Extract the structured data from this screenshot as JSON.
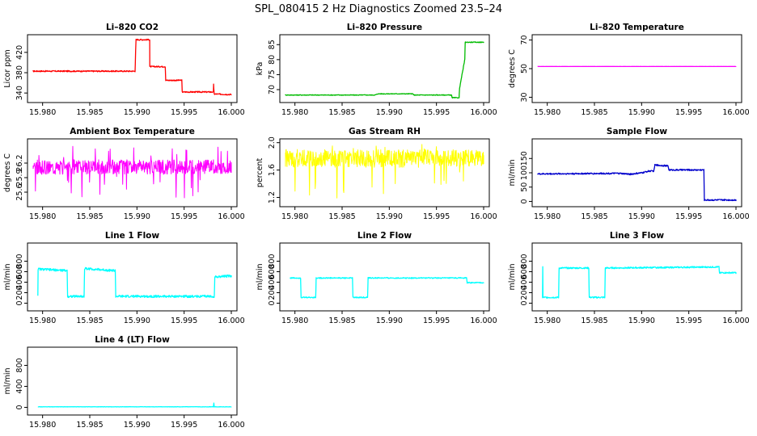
{
  "page_title": "SPL_080415  2 Hz Diagnostics Zoomed 23.5–24",
  "chart_data": [
    {
      "type": "line",
      "title": "Li–820 CO2",
      "ylabel": "Licor ppm",
      "color": "#ff0000",
      "xlim": [
        15.979,
        16.0
      ],
      "ylim": [
        326,
        450
      ],
      "xticks": [
        15.98,
        15.985,
        15.99,
        15.995,
        16.0
      ],
      "xtick_labels": [
        "15.980",
        "15.985",
        "15.990",
        "15.995",
        "16.000"
      ],
      "yticks": [
        340,
        380,
        420
      ],
      "ytick_labels": [
        "340",
        "380",
        "420"
      ],
      "noise": 1.2,
      "series": [
        {
          "x": [
            15.979,
            15.9898,
            15.9899,
            15.99135,
            15.99136,
            15.993,
            15.99305,
            15.99475,
            15.9948,
            15.9981,
            15.99812,
            15.99818,
            15.9982,
            16.0
          ],
          "y": [
            383,
            383,
            445,
            445,
            392,
            392,
            365,
            365,
            342,
            342,
            358,
            338,
            338,
            337
          ]
        }
      ]
    },
    {
      "type": "line",
      "title": "Li–820 Pressure",
      "ylabel": "kPa",
      "color": "#00bb00",
      "xlim": [
        15.979,
        16.0
      ],
      "ylim": [
        66.5,
        87.5
      ],
      "xticks": [
        15.98,
        15.985,
        15.99,
        15.995,
        16.0
      ],
      "xtick_labels": [
        "15.980",
        "15.985",
        "15.990",
        "15.995",
        "16.000"
      ],
      "yticks": [
        70,
        75,
        80,
        85
      ],
      "ytick_labels": [
        "70",
        "75",
        "80",
        "85"
      ],
      "noise": 0.12,
      "series": [
        {
          "x": [
            15.979,
            15.9885,
            15.9888,
            15.9925,
            15.9926,
            15.9966,
            15.99665,
            15.9974,
            15.99745,
            15.998,
            15.99805,
            16.0
          ],
          "y": [
            68.2,
            68.2,
            68.6,
            68.6,
            68.2,
            68.2,
            67.3,
            67.3,
            70.5,
            80.0,
            85.8,
            85.8
          ]
        }
      ]
    },
    {
      "type": "line",
      "title": "Li–820 Temperature",
      "ylabel": "degrees C",
      "color": "#ff00ff",
      "xlim": [
        15.979,
        16.0
      ],
      "ylim": [
        28,
        72
      ],
      "xticks": [
        15.98,
        15.985,
        15.99,
        15.995,
        16.0
      ],
      "xtick_labels": [
        "15.980",
        "15.985",
        "15.990",
        "15.995",
        "16.000"
      ],
      "yticks": [
        30,
        50,
        70
      ],
      "ytick_labels": [
        "30",
        "50",
        "70"
      ],
      "noise": 0.05,
      "series": [
        {
          "x": [
            15.979,
            16.0
          ],
          "y": [
            51.5,
            51.5
          ]
        }
      ]
    },
    {
      "type": "line",
      "title": "Ambient Box Temperature",
      "ylabel": "degrees C",
      "color": "#ff00ff",
      "xlim": [
        15.979,
        16.0
      ],
      "ylim": [
        25.35,
        26.65
      ],
      "xticks": [
        15.98,
        15.985,
        15.99,
        15.995,
        16.0
      ],
      "xtick_labels": [
        "15.980",
        "15.985",
        "15.990",
        "15.995",
        "16.000"
      ],
      "yticks": [
        25.6,
        25.9,
        26.2
      ],
      "ytick_labels": [
        "25.6",
        "25.9",
        "26.2"
      ],
      "noise": 0.0,
      "band": [
        25.97,
        26.27
      ],
      "spikes": [
        25.45,
        26.55
      ],
      "series": [
        {
          "x": [
            15.979,
            16.0
          ],
          "y": [
            26.12,
            26.12
          ]
        }
      ]
    },
    {
      "type": "line",
      "title": "Gas Stream RH",
      "ylabel": "percent",
      "color": "#ffff00",
      "xlim": [
        15.979,
        16.0
      ],
      "ylim": [
        1.1,
        2.02
      ],
      "xticks": [
        15.98,
        15.985,
        15.99,
        15.995,
        16.0
      ],
      "xtick_labels": [
        "15.980",
        "15.985",
        "15.990",
        "15.995",
        "16.000"
      ],
      "yticks": [
        1.2,
        1.6,
        2.0
      ],
      "ytick_labels": [
        "1.2",
        "1.6",
        "2.0"
      ],
      "noise": 0.0,
      "band": [
        1.64,
        1.9
      ],
      "spikes": [
        1.18,
        1.98
      ],
      "series": [
        {
          "x": [
            15.979,
            16.0
          ],
          "y": [
            1.75,
            1.75
          ]
        }
      ]
    },
    {
      "type": "line",
      "title": "Sample Flow",
      "ylabel": "ml/min",
      "color": "#0000cc",
      "xlim": [
        15.979,
        16.0
      ],
      "ylim": [
        -10,
        210
      ],
      "xticks": [
        15.98,
        15.985,
        15.99,
        15.995,
        16.0
      ],
      "xtick_labels": [
        "15.980",
        "15.985",
        "15.990",
        "15.995",
        "16.000"
      ],
      "yticks": [
        0,
        50,
        100,
        150
      ],
      "ytick_labels": [
        "0",
        "50",
        "100",
        "150"
      ],
      "noise": 2.5,
      "series": [
        {
          "x": [
            15.979,
            15.9875,
            15.9888,
            15.9901,
            15.9907,
            15.9913,
            15.9914,
            15.9928,
            15.9929,
            15.9966,
            15.99665,
            16.0
          ],
          "y": [
            96,
            98,
            95,
            100,
            106,
            106,
            127,
            124,
            110,
            110,
            5,
            5
          ]
        }
      ]
    },
    {
      "type": "line",
      "title": "Line 1 Flow",
      "ylabel": "ml/min",
      "color": "#00ffff",
      "xlim": [
        15.979,
        16.0
      ],
      "ylim": [
        -100,
        1100
      ],
      "xticks": [
        15.98,
        15.985,
        15.99,
        15.995,
        16.0
      ],
      "xtick_labels": [
        "15.980",
        "15.985",
        "15.990",
        "15.995",
        "16.000"
      ],
      "yticks": [
        0,
        200,
        400,
        600,
        800
      ],
      "ytick_labels": [
        "0",
        "200",
        "400",
        "600",
        "800"
      ],
      "noise": 22,
      "series": [
        {
          "x": [
            15.9795,
            15.97952,
            15.9826,
            15.98265,
            15.9844,
            15.98445,
            15.9877,
            15.98775,
            15.9982,
            15.99825,
            16.0
          ],
          "y": [
            150,
            650,
            620,
            130,
            130,
            660,
            620,
            130,
            130,
            500,
            520
          ]
        }
      ]
    },
    {
      "type": "line",
      "title": "Line 2 Flow",
      "ylabel": "ml/min",
      "color": "#00ffff",
      "xlim": [
        15.979,
        16.0
      ],
      "ylim": [
        -100,
        1100
      ],
      "xticks": [
        15.98,
        15.985,
        15.99,
        15.995,
        16.0
      ],
      "xtick_labels": [
        "15.980",
        "15.985",
        "15.990",
        "15.995",
        "16.000"
      ],
      "yticks": [
        0,
        200,
        400,
        600,
        800
      ],
      "ytick_labels": [
        "0",
        "200",
        "400",
        "600",
        "800"
      ],
      "noise": 10,
      "series": [
        {
          "x": [
            15.9795,
            15.9806,
            15.98065,
            15.9822,
            15.98225,
            15.9861,
            15.98615,
            15.9877,
            15.98775,
            15.9982,
            15.99825,
            16.0
          ],
          "y": [
            480,
            480,
            110,
            110,
            480,
            480,
            110,
            110,
            480,
            480,
            390,
            390
          ]
        }
      ]
    },
    {
      "type": "line",
      "title": "Line 3 Flow",
      "ylabel": "ml/min",
      "color": "#00ffff",
      "xlim": [
        15.979,
        16.0
      ],
      "ylim": [
        -100,
        1100
      ],
      "xticks": [
        15.98,
        15.985,
        15.99,
        15.995,
        16.0
      ],
      "xtick_labels": [
        "15.980",
        "15.985",
        "15.990",
        "15.995",
        "16.000"
      ],
      "yticks": [
        0,
        200,
        400,
        600,
        800
      ],
      "ytick_labels": [
        "0",
        "200",
        "400",
        "600",
        "800"
      ],
      "noise": 14,
      "series": [
        {
          "x": [
            15.9795,
            15.97952,
            15.97955,
            15.9812,
            15.98125,
            15.9844,
            15.98445,
            15.9861,
            15.98615,
            15.9982,
            15.99825,
            16.0
          ],
          "y": [
            110,
            700,
            110,
            110,
            670,
            670,
            110,
            110,
            670,
            690,
            580,
            580
          ]
        }
      ]
    },
    {
      "type": "line",
      "title": "Line 4 (LT) Flow",
      "ylabel": "ml/min",
      "color": "#00ffff",
      "xlim": [
        15.979,
        16.0
      ],
      "ylim": [
        -100,
        1100
      ],
      "xticks": [
        15.98,
        15.985,
        15.99,
        15.995,
        16.0
      ],
      "xtick_labels": [
        "15.980",
        "15.985",
        "15.990",
        "15.995",
        "16.000"
      ],
      "yticks": [
        0,
        400,
        800
      ],
      "ytick_labels": [
        "0",
        "400",
        "800"
      ],
      "noise": 3,
      "series": [
        {
          "x": [
            15.9795,
            15.9981,
            15.99815,
            15.9982,
            15.99825,
            16.0
          ],
          "y": [
            10,
            10,
            80,
            10,
            10,
            10
          ]
        }
      ]
    }
  ]
}
